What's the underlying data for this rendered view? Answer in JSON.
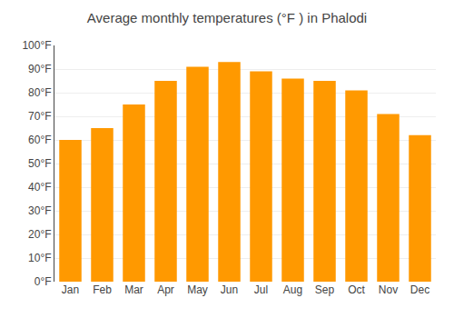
{
  "chart_data": {
    "type": "bar",
    "title": "Average monthly temperatures (°F ) in Phalodi",
    "categories": [
      "Jan",
      "Feb",
      "Mar",
      "Apr",
      "May",
      "Jun",
      "Jul",
      "Aug",
      "Sep",
      "Oct",
      "Nov",
      "Dec"
    ],
    "values": [
      60,
      65,
      75,
      85,
      91,
      93,
      89,
      86,
      85,
      81,
      71,
      62
    ],
    "color": "#FF9900",
    "ylim": [
      0,
      100
    ],
    "yticks": [
      {
        "value": 0,
        "label": "0°F"
      },
      {
        "value": 10,
        "label": "10°F"
      },
      {
        "value": 20,
        "label": "20°F"
      },
      {
        "value": 30,
        "label": "30°F"
      },
      {
        "value": 40,
        "label": "40°F"
      },
      {
        "value": 50,
        "label": "50°F"
      },
      {
        "value": 60,
        "label": "60°F"
      },
      {
        "value": 70,
        "label": "70°F"
      },
      {
        "value": 80,
        "label": "80°F"
      },
      {
        "value": 90,
        "label": "90°F"
      },
      {
        "value": 100,
        "label": "100°F"
      }
    ],
    "grid": true
  }
}
